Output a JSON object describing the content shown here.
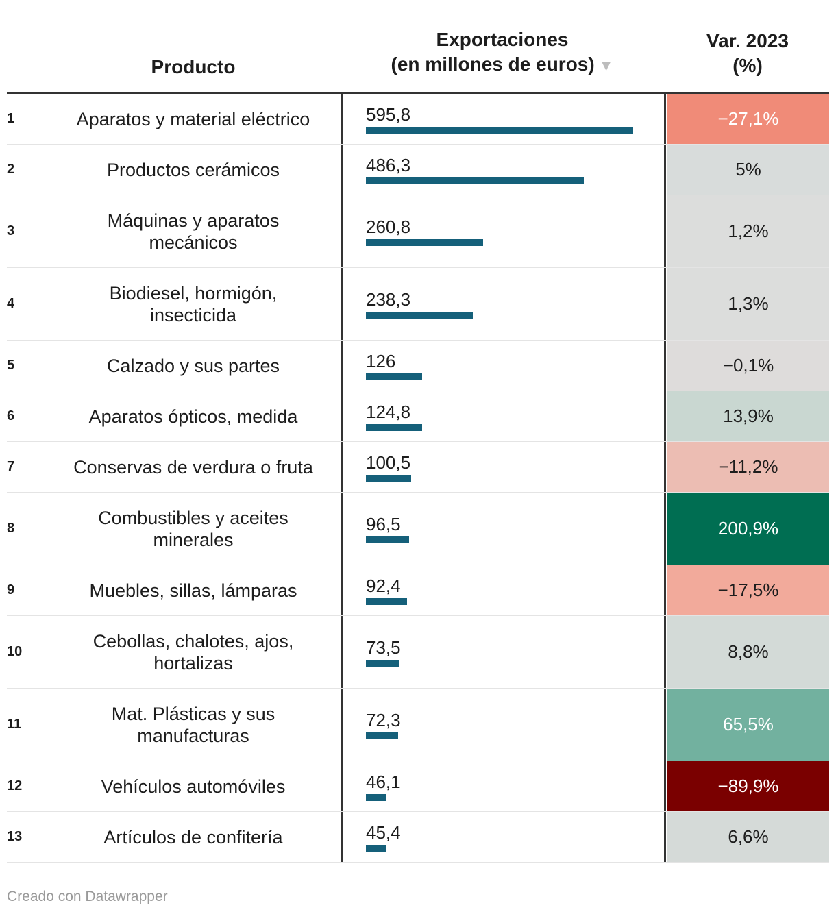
{
  "header": {
    "product": "Producto",
    "exports_line1": "Exportaciones",
    "exports_line2": "(en millones de euros)",
    "sort_arrow": "▼",
    "var_line1": "Var. 2023",
    "var_line2": "(%)"
  },
  "footer": "Creado con Datawrapper",
  "colors": {
    "bar": "#15607a",
    "neutral": "#dcdcdc",
    "negative_strong": "#7a0000",
    "positive_strong": "#006e52"
  },
  "chart_data": {
    "type": "table",
    "columns": [
      "Producto",
      "Exportaciones (en millones de euros)",
      "Var. 2023 (%)"
    ],
    "max_value": 595.8,
    "rows": [
      {
        "rank": "1",
        "product": "Aparatos y material eléctrico",
        "value": 595.8,
        "value_label": "595,8",
        "var": -27.1,
        "var_label": "−27,1%",
        "var_color": "#f08b78",
        "var_text_color": "#ffffff"
      },
      {
        "rank": "2",
        "product": "Productos cerámicos",
        "value": 486.3,
        "value_label": "486,3",
        "var": 5,
        "var_label": "5%",
        "var_color": "#d8dcdb",
        "var_text_color": "#1d1d1d"
      },
      {
        "rank": "3",
        "product": "Máquinas y aparatos mecánicos",
        "value": 260.8,
        "value_label": "260,8",
        "var": 1.2,
        "var_label": "1,2%",
        "var_color": "#dcdddc",
        "var_text_color": "#1d1d1d"
      },
      {
        "rank": "4",
        "product": "Biodiesel, hormigón, insecticida",
        "value": 238.3,
        "value_label": "238,3",
        "var": 1.3,
        "var_label": "1,3%",
        "var_color": "#dcdddc",
        "var_text_color": "#1d1d1d"
      },
      {
        "rank": "5",
        "product": "Calzado y sus partes",
        "value": 126,
        "value_label": "126",
        "var": -0.1,
        "var_label": "−0,1%",
        "var_color": "#dedcdb",
        "var_text_color": "#1d1d1d"
      },
      {
        "rank": "6",
        "product": "Aparatos ópticos, medida",
        "value": 124.8,
        "value_label": "124,8",
        "var": 13.9,
        "var_label": "13,9%",
        "var_color": "#c9d7d1",
        "var_text_color": "#1d1d1d"
      },
      {
        "rank": "7",
        "product": "Conservas de verdura o fruta",
        "value": 100.5,
        "value_label": "100,5",
        "var": -11.2,
        "var_label": "−11,2%",
        "var_color": "#ecbdb3",
        "var_text_color": "#1d1d1d"
      },
      {
        "rank": "8",
        "product": "Combustibles y aceites minerales",
        "value": 96.5,
        "value_label": "96,5",
        "var": 200.9,
        "var_label": "200,9%",
        "var_color": "#006e52",
        "var_text_color": "#ffffff"
      },
      {
        "rank": "9",
        "product": "Muebles, sillas, lámparas",
        "value": 92.4,
        "value_label": "92,4",
        "var": -17.5,
        "var_label": "−17,5%",
        "var_color": "#f2aa9b",
        "var_text_color": "#1d1d1d"
      },
      {
        "rank": "10",
        "product": "Cebollas, chalotes, ajos, hortalizas",
        "value": 73.5,
        "value_label": "73,5",
        "var": 8.8,
        "var_label": "8,8%",
        "var_color": "#d3dad7",
        "var_text_color": "#1d1d1d"
      },
      {
        "rank": "11",
        "product": "Mat. Plásticas y sus manufacturas",
        "value": 72.3,
        "value_label": "72,3",
        "var": 65.5,
        "var_label": "65,5%",
        "var_color": "#72b19f",
        "var_text_color": "#ffffff"
      },
      {
        "rank": "12",
        "product": "Vehículos automóviles",
        "value": 46.1,
        "value_label": "46,1",
        "var": -89.9,
        "var_label": "−89,9%",
        "var_color": "#7a0000",
        "var_text_color": "#ffffff"
      },
      {
        "rank": "13",
        "product": "Artículos de confitería",
        "value": 45.4,
        "value_label": "45,4",
        "var": 6.6,
        "var_label": "6,6%",
        "var_color": "#d5dad8",
        "var_text_color": "#1d1d1d"
      }
    ]
  }
}
